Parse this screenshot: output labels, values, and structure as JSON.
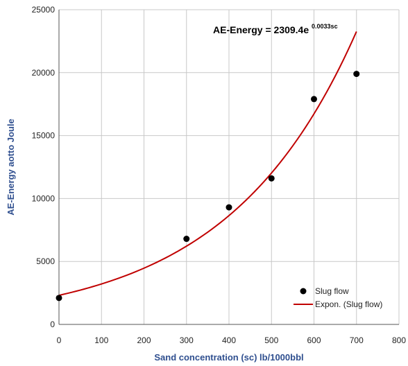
{
  "chart_data": {
    "type": "scatter",
    "xlabel": "Sand concentration (sc) lb/1000bbl",
    "ylabel": "AE-Energy aotto Joule",
    "xlim": [
      0,
      800
    ],
    "ylim": [
      0,
      25000
    ],
    "x_ticks": [
      "0",
      "100",
      "200",
      "300",
      "400",
      "500",
      "600",
      "700",
      "800"
    ],
    "y_ticks": [
      "0",
      "5000",
      "10000",
      "15000",
      "20000",
      "25000"
    ],
    "grid": true,
    "legend_position": "bottom-right",
    "series": [
      {
        "name": "Slug flow",
        "kind": "scatter",
        "color": "#000000",
        "points": [
          {
            "x": 0,
            "y": 2100
          },
          {
            "x": 300,
            "y": 6800
          },
          {
            "x": 400,
            "y": 9300
          },
          {
            "x": 500,
            "y": 11600
          },
          {
            "x": 600,
            "y": 17900
          },
          {
            "x": 700,
            "y": 19900
          }
        ]
      },
      {
        "name": "Expon. (Slug flow)",
        "kind": "trendline",
        "color": "#c00000",
        "model": "exponential",
        "a": 2309.4,
        "b": 0.0033,
        "x_range": [
          0,
          700
        ]
      }
    ],
    "annotation": {
      "prefix": "AE-Energy = 2309.4e",
      "exponent": "0.0033sc"
    }
  }
}
